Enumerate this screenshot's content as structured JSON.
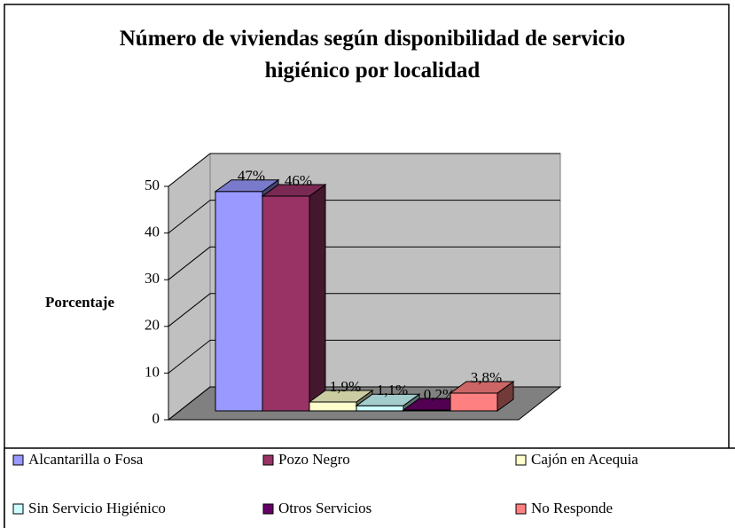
{
  "chart_data": {
    "type": "bar3d",
    "title": "Número de viviendas según disponibilidad de servicio higiénico por localidad",
    "y_label": "Porcentaje",
    "categories": [
      null
    ],
    "series": [
      {
        "name": "Alcantarilla o Fosa",
        "color": "#9999ff",
        "values": [
          47
        ],
        "value_labels": [
          "47%"
        ]
      },
      {
        "name": "Pozo Negro",
        "color": "#993366",
        "values": [
          46
        ],
        "value_labels": [
          "46%"
        ]
      },
      {
        "name": "Cajón en Acequia",
        "color": "#ffffcc",
        "values": [
          1.9
        ],
        "value_labels": [
          "1,9%"
        ]
      },
      {
        "name": "Sin Servicio Higiénico",
        "color": "#ccffff",
        "values": [
          1.1
        ],
        "value_labels": [
          "1,1%"
        ]
      },
      {
        "name": "Otros Servicios",
        "color": "#660066",
        "values": [
          0.2
        ],
        "value_labels": [
          "0,2%"
        ]
      },
      {
        "name": "No Responde",
        "color": "#ff8080",
        "values": [
          3.8
        ],
        "value_labels": [
          "3,8%"
        ]
      }
    ],
    "ylim": [
      0,
      50
    ],
    "yticks": [
      0,
      10,
      20,
      30,
      40,
      50
    ],
    "grid": true,
    "legend": "bottom"
  }
}
